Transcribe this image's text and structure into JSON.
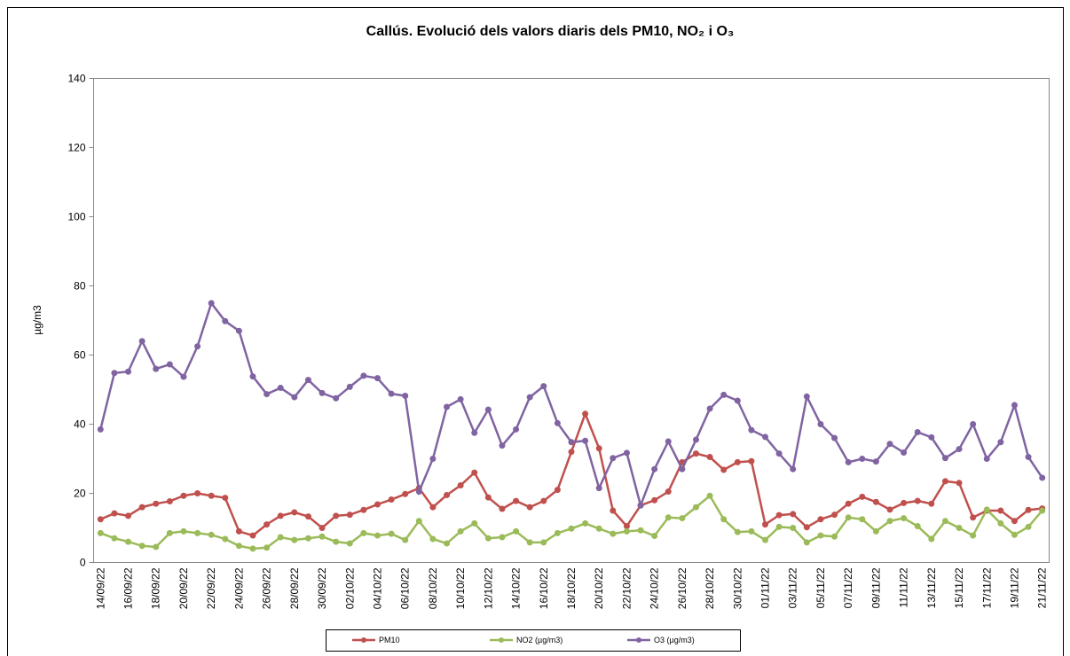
{
  "chart_data": {
    "type": "line",
    "title": "Callús. Evolució dels valors diaris dels PM10, NO₂ i O₃",
    "y_label": "µg/m3",
    "categories": [
      "14/09/22",
      null,
      "16/09/22",
      null,
      "18/09/22",
      null,
      "20/09/22",
      null,
      "22/09/22",
      null,
      "24/09/22",
      null,
      "26/09/22",
      null,
      "28/09/22",
      null,
      "30/09/22",
      null,
      "02/10/22",
      null,
      "04/10/22",
      null,
      "06/10/22",
      null,
      "08/10/22",
      null,
      "10/10/22",
      null,
      "12/10/22",
      null,
      "14/10/22",
      null,
      "16/10/22",
      null,
      "18/10/22",
      null,
      "20/10/22",
      null,
      "22/10/22",
      null,
      "24/10/22",
      null,
      "26/10/22",
      null,
      "28/10/22",
      null,
      "30/10/22",
      null,
      "01/11/22",
      null,
      "03/11/22",
      null,
      "05/11/22",
      null,
      "07/11/22",
      null,
      "09/11/22",
      null,
      "11/11/22",
      null,
      "13/11/22",
      null,
      "15/11/22",
      null,
      "17/11/22",
      null,
      "19/11/22",
      null,
      "21/11/22"
    ],
    "series": [
      {
        "name": "PM10",
        "color": "#c0504d",
        "values": [
          12.5,
          14.2,
          13.5,
          16,
          17,
          17.7,
          19.3,
          20,
          19.3,
          18.7,
          9,
          7.8,
          11,
          13.5,
          14.5,
          13.3,
          10,
          13.5,
          13.8,
          15.2,
          16.8,
          18.2,
          19.8,
          21.5,
          16,
          19.5,
          22.3,
          26,
          18.8,
          15.5,
          17.8,
          16,
          17.8,
          21,
          32,
          43,
          33,
          15,
          10.5,
          16.5,
          18,
          20.5,
          29,
          31.5,
          30.5,
          26.8,
          29,
          29.3,
          11,
          13.7,
          14,
          10.2,
          12.5,
          13.8,
          17,
          19,
          17.5,
          15.3,
          17.2,
          17.8,
          17,
          23.5,
          23,
          13,
          15,
          15,
          12,
          15.2,
          15.6
        ]
      },
      {
        "name": "NO2 (µg/m3)",
        "color": "#9bbb59",
        "values": [
          8.5,
          7,
          6,
          4.8,
          4.5,
          8.5,
          9,
          8.5,
          8,
          6.8,
          4.8,
          4,
          4.3,
          7.3,
          6.5,
          7,
          7.5,
          6,
          5.5,
          8.5,
          7.8,
          8.3,
          6.5,
          12,
          6.8,
          5.5,
          9,
          11.3,
          7,
          7.3,
          9,
          5.8,
          5.8,
          8.5,
          9.8,
          11.3,
          9.8,
          8.3,
          9,
          9.3,
          7.7,
          13,
          12.8,
          16,
          19.3,
          12.5,
          8.8,
          9,
          6.5,
          10.3,
          10,
          5.8,
          7.8,
          7.5,
          13,
          12.5,
          9,
          12,
          12.8,
          10.5,
          6.8,
          12,
          10,
          7.8,
          15.3,
          11.3,
          8,
          10.3,
          15
        ]
      },
      {
        "name": "O3 (µg/m3)",
        "color": "#8064a2",
        "values": [
          38.5,
          54.8,
          55.2,
          64,
          56,
          57.3,
          53.7,
          62.5,
          75,
          69.8,
          67,
          53.8,
          48.7,
          50.5,
          47.8,
          52.8,
          49,
          47.5,
          50.8,
          54,
          53.3,
          48.8,
          48.2,
          20.5,
          30,
          45,
          47.2,
          37.5,
          44.2,
          33.8,
          38.5,
          47.8,
          51,
          40.3,
          34.8,
          35.2,
          21.5,
          30.2,
          31.7,
          16.5,
          27,
          35,
          27,
          35.5,
          44.5,
          48.5,
          46.8,
          38.3,
          36.3,
          31.5,
          27,
          48,
          40,
          36,
          29,
          30,
          29.2,
          34.3,
          31.8,
          37.7,
          36.2,
          30.2,
          32.8,
          40,
          30,
          34.8,
          45.5,
          30.5,
          24.5
        ]
      }
    ],
    "ylim": [
      0,
      140
    ],
    "yticks": [
      0,
      20,
      40,
      60,
      80,
      100,
      120,
      140
    ],
    "grid": false,
    "legend": "bottom"
  }
}
